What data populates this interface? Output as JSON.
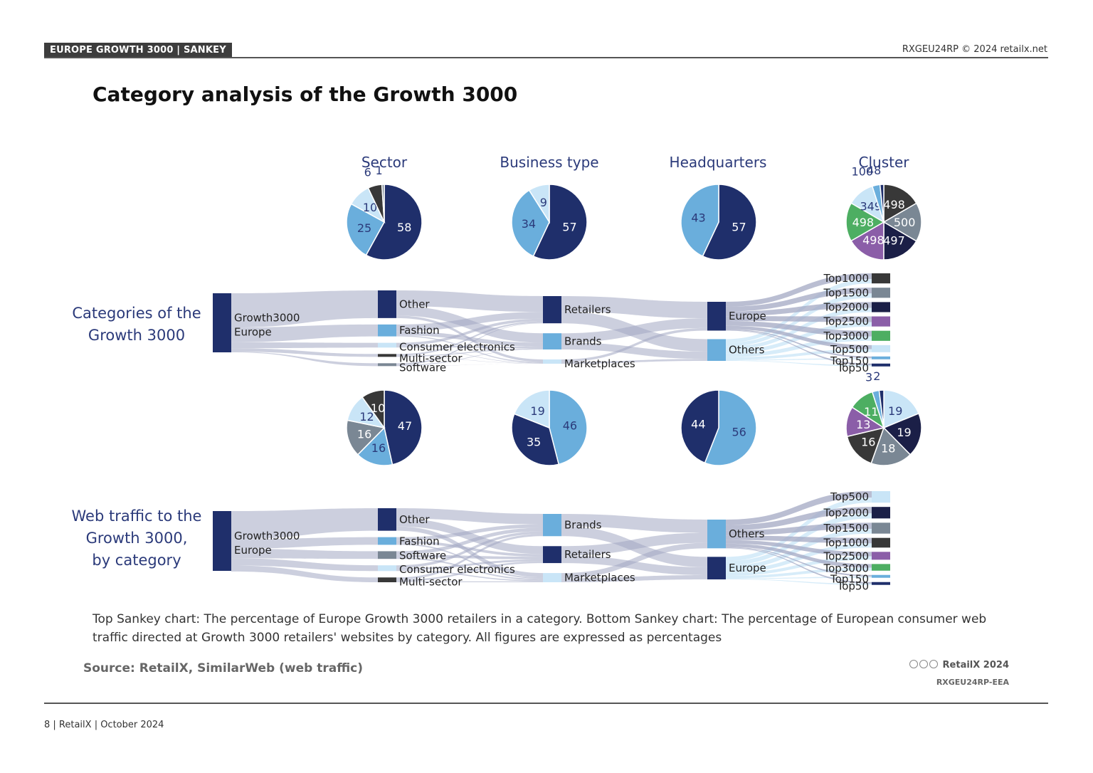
{
  "header": {
    "tag": "EUROPE GROWTH 3000 | SANKEY",
    "code": "RXGEU24RP © 2024 retailx.net"
  },
  "title": "Category analysis of the Growth 3000",
  "column_titles": [
    "Sector",
    "Business type",
    "Headquarters",
    "Cluster"
  ],
  "colors": {
    "navy": "#1f2f6b",
    "light_blue": "#6aaedc",
    "pale_blue": "#c9e5f7",
    "grey": "#7a8794",
    "dark": "#383838",
    "purple": "#8b5ea8",
    "green": "#4dae62",
    "darknavy": "#1b1f47",
    "flow": "#a3a8c3"
  },
  "chart_data": [
    {
      "type": "sankey",
      "row_title": "Categories of the Growth 3000",
      "source_label_lines": [
        "Growth3000",
        "Europe"
      ],
      "sector": [
        {
          "label": "Other",
          "value": 58,
          "color": "navy"
        },
        {
          "label": "Fashion",
          "value": 25,
          "color": "light_blue"
        },
        {
          "label": "Consumer electronics",
          "value": 10,
          "color": "pale_blue"
        },
        {
          "label": "Multi-sector",
          "value": 6,
          "color": "dark"
        },
        {
          "label": "Software",
          "value": 1,
          "color": "grey"
        }
      ],
      "business_type": [
        {
          "label": "Retailers",
          "value": 57,
          "color": "navy"
        },
        {
          "label": "Brands",
          "value": 34,
          "color": "light_blue"
        },
        {
          "label": "Marketplaces",
          "value": 9,
          "color": "pale_blue"
        }
      ],
      "headquarters": [
        {
          "label": "Europe",
          "value": 57,
          "color": "navy"
        },
        {
          "label": "Others",
          "value": 43,
          "color": "light_blue"
        }
      ],
      "cluster": [
        {
          "label": "Top1000",
          "value": 498,
          "color": "dark"
        },
        {
          "label": "Top1500",
          "value": 500,
          "color": "grey"
        },
        {
          "label": "Top2000",
          "value": 497,
          "color": "darknavy"
        },
        {
          "label": "Top2500",
          "value": 498,
          "color": "purple"
        },
        {
          "label": "Top3000",
          "value": 498,
          "color": "green"
        },
        {
          "label": "Top500",
          "value": 349,
          "color": "pale_blue"
        },
        {
          "label": "Top150",
          "value": 100,
          "color": "light_blue"
        },
        {
          "label": "Top50",
          "value": 48,
          "color": "navy"
        }
      ]
    },
    {
      "type": "sankey",
      "row_title": "Web traffic to the Growth 3000, by category",
      "source_label_lines": [
        "Growth3000",
        "Europe"
      ],
      "sector": [
        {
          "label": "Other",
          "value": 47,
          "color": "navy"
        },
        {
          "label": "Fashion",
          "value": 16,
          "color": "light_blue"
        },
        {
          "label": "Software",
          "value": 16,
          "color": "grey"
        },
        {
          "label": "Consumer electronics",
          "value": 12,
          "color": "pale_blue"
        },
        {
          "label": "Multi-sector",
          "value": 10,
          "color": "dark"
        }
      ],
      "business_type": [
        {
          "label": "Brands",
          "value": 46,
          "color": "light_blue"
        },
        {
          "label": "Retailers",
          "value": 35,
          "color": "navy"
        },
        {
          "label": "Marketplaces",
          "value": 19,
          "color": "pale_blue"
        }
      ],
      "headquarters": [
        {
          "label": "Others",
          "value": 56,
          "color": "light_blue"
        },
        {
          "label": "Europe",
          "value": 44,
          "color": "navy"
        }
      ],
      "cluster": [
        {
          "label": "Top500",
          "value": 19,
          "color": "pale_blue"
        },
        {
          "label": "Top2000",
          "value": 19,
          "color": "darknavy"
        },
        {
          "label": "Top1500",
          "value": 18,
          "color": "grey"
        },
        {
          "label": "Top1000",
          "value": 16,
          "color": "dark"
        },
        {
          "label": "Top2500",
          "value": 13,
          "color": "purple"
        },
        {
          "label": "Top3000",
          "value": 11,
          "color": "green"
        },
        {
          "label": "Top150",
          "value": 3,
          "color": "light_blue"
        },
        {
          "label": "Top50",
          "value": 2,
          "color": "navy"
        }
      ]
    }
  ],
  "caption": "Top Sankey chart: The percentage of Europe Growth 3000 retailers in a category. Bottom Sankey chart: The percentage of European consumer web traffic directed at Growth 3000 retailers' websites by category. All figures are expressed as percentages",
  "source": "Source: RetailX, SimilarWeb (web traffic)",
  "credit": "RetailX 2024",
  "credit_code": "RXGEU24RP-EEA",
  "footer": "8 | RetailX | October 2024"
}
